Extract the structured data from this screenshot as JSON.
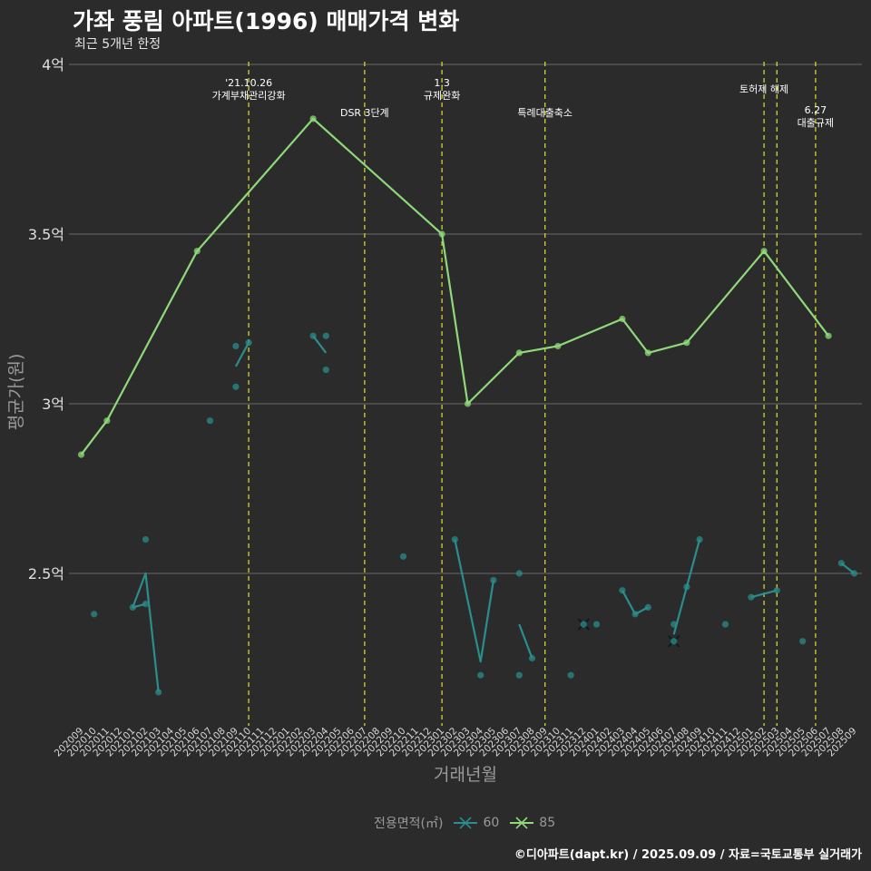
{
  "chart_data": {
    "type": "line",
    "title": "가좌 풍림 아파트(1996) 매매가격 변화",
    "subtitle": "최근 5개년 한정",
    "xlabel": "거래년월",
    "ylabel": "평균가(원)",
    "ylim": [
      2.05,
      4.0
    ],
    "yticks": [
      {
        "value": 2.5,
        "label": "2.5억"
      },
      {
        "value": 3.0,
        "label": "3억"
      },
      {
        "value": 3.5,
        "label": "3.5억"
      },
      {
        "value": 4.0,
        "label": "4억"
      }
    ],
    "categories": [
      "202009",
      "202010",
      "202011",
      "202012",
      "202101",
      "202102",
      "202103",
      "202104",
      "202105",
      "202106",
      "202107",
      "202108",
      "202109",
      "202110",
      "202111",
      "202112",
      "202201",
      "202202",
      "202203",
      "202204",
      "202205",
      "202206",
      "202207",
      "202208",
      "202209",
      "202210",
      "202211",
      "202212",
      "202301",
      "202302",
      "202303",
      "202304",
      "202305",
      "202306",
      "202307",
      "202308",
      "202309",
      "202310",
      "202311",
      "202312",
      "202401",
      "202402",
      "202403",
      "202404",
      "202405",
      "202406",
      "202407",
      "202408",
      "202409",
      "202410",
      "202411",
      "202412",
      "202501",
      "202502",
      "202503",
      "202504",
      "202505",
      "202506",
      "202507",
      "202508",
      "202509"
    ],
    "series": [
      {
        "name": "60",
        "color": "#2a8e8c",
        "line": [
          [
            [
              "202102",
              2.41
            ],
            [
              "202101",
              2.4
            ],
            [
              "202102",
              2.5
            ],
            [
              "202103",
              2.15
            ]
          ],
          [
            [
              "202109",
              3.11
            ],
            [
              "202110",
              3.18
            ]
          ],
          [
            [
              "202203",
              3.2
            ],
            [
              "202204",
              3.15
            ]
          ],
          [
            [
              "202302",
              2.6
            ],
            [
              "202304",
              2.24
            ],
            [
              "202305",
              2.48
            ]
          ],
          [
            [
              "202307",
              2.35
            ],
            [
              "202308",
              2.25
            ]
          ],
          [
            [
              "202403",
              2.45
            ],
            [
              "202404",
              2.38
            ],
            [
              "202405",
              2.4
            ]
          ],
          [
            [
              "202407",
              2.32
            ],
            [
              "202408",
              2.46
            ],
            [
              "202409",
              2.6
            ]
          ],
          [
            [
              "202501",
              2.43
            ],
            [
              "202503",
              2.45
            ]
          ],
          [
            [
              "202508",
              2.53
            ],
            [
              "202509",
              2.5
            ]
          ]
        ],
        "points": [
          [
            "202010",
            2.38
          ],
          [
            "202101",
            2.4
          ],
          [
            "202102",
            2.41
          ],
          [
            "202102",
            2.6
          ],
          [
            "202103",
            2.15
          ],
          [
            "202107",
            2.95
          ],
          [
            "202109",
            3.17
          ],
          [
            "202109",
            3.05
          ],
          [
            "202110",
            3.18
          ],
          [
            "202203",
            3.2
          ],
          [
            "202204",
            3.2
          ],
          [
            "202204",
            3.1
          ],
          [
            "202210",
            2.55
          ],
          [
            "202302",
            2.6
          ],
          [
            "202304",
            2.2
          ],
          [
            "202305",
            2.48
          ],
          [
            "202307",
            2.5
          ],
          [
            "202307",
            2.2
          ],
          [
            "202308",
            2.25
          ],
          [
            "202311",
            2.2
          ],
          [
            "202401",
            2.35
          ],
          [
            "202403",
            2.45
          ],
          [
            "202404",
            2.38
          ],
          [
            "202405",
            2.4
          ],
          [
            "202407",
            2.35
          ],
          [
            "202408",
            2.46
          ],
          [
            "202409",
            2.6
          ],
          [
            "202411",
            2.35
          ],
          [
            "202501",
            2.43
          ],
          [
            "202503",
            2.45
          ],
          [
            "202505",
            2.3
          ],
          [
            "202508",
            2.53
          ],
          [
            "202509",
            2.5
          ]
        ],
        "cross_markers": [
          [
            "202312",
            2.35
          ],
          [
            "202407",
            2.3
          ]
        ]
      },
      {
        "name": "85",
        "color": "#8fd97a",
        "line": [
          [
            [
              "202009",
              2.85
            ],
            [
              "202011",
              2.95
            ],
            [
              "202106",
              3.45
            ],
            [
              "202203",
              3.84
            ],
            [
              "202301",
              3.5
            ],
            [
              "202303",
              3.0
            ],
            [
              "202307",
              3.15
            ],
            [
              "202310",
              3.17
            ],
            [
              "202403",
              3.25
            ],
            [
              "202405",
              3.15
            ],
            [
              "202408",
              3.18
            ],
            [
              "202502",
              3.45
            ],
            [
              "202507",
              3.2
            ]
          ]
        ],
        "points": [
          [
            "202009",
            2.85
          ],
          [
            "202011",
            2.95
          ],
          [
            "202106",
            3.45
          ],
          [
            "202203",
            3.84
          ],
          [
            "202301",
            3.5
          ],
          [
            "202303",
            3.0
          ],
          [
            "202307",
            3.15
          ],
          [
            "202310",
            3.17
          ],
          [
            "202403",
            3.25
          ],
          [
            "202405",
            3.15
          ],
          [
            "202408",
            3.18
          ],
          [
            "202502",
            3.45
          ],
          [
            "202507",
            3.2
          ]
        ]
      }
    ],
    "events": [
      {
        "x": "202110",
        "label_lines": [
          "'21.10.26",
          "가계부채관리강화"
        ],
        "label_row": 0
      },
      {
        "x": "202207",
        "label_lines": [
          "DSR 3단계"
        ],
        "label_row": 2
      },
      {
        "x": "202301",
        "label_lines": [
          "1.3",
          "규제완화"
        ],
        "label_row": 0
      },
      {
        "x": "202309",
        "label_lines": [
          "특례대출축소"
        ],
        "label_row": 2
      },
      {
        "x": "202502",
        "label_lines": [
          "토허제 해제"
        ],
        "label_row": 1
      },
      {
        "x": "202503",
        "label_lines": [],
        "label_row": 0
      },
      {
        "x": "202506",
        "label_lines": [
          "6.27",
          "대출규제"
        ],
        "label_row": 3
      }
    ],
    "legend_title": "전용면적(㎡)",
    "legend_items": [
      "60",
      "85"
    ]
  },
  "footer": "©디아파트(dapt.kr) / 2025.09.09 / 자료=국토교통부 실거래가"
}
